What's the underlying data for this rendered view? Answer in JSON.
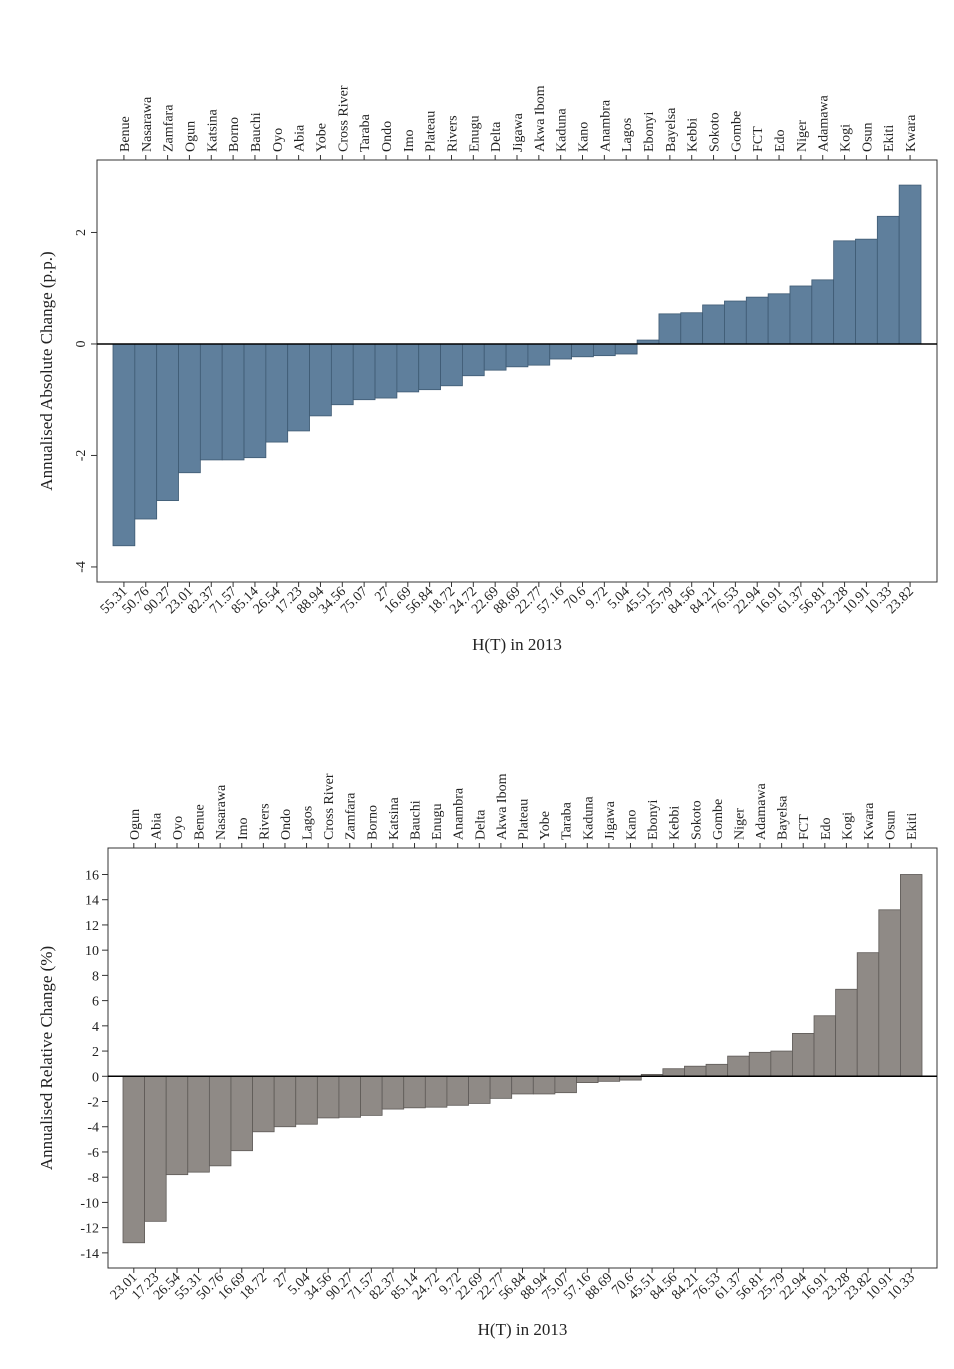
{
  "chart_data": [
    {
      "type": "bar",
      "y_label": "Annualised Absolute Change (p.p.)",
      "x_label": "H(T) in 2013",
      "color": "#5f7f9c",
      "edge_color": "#3e5a73",
      "categories": [
        "Benue",
        "Nasarawa",
        "Zamfara",
        "Ogun",
        "Katsina",
        "Borno",
        "Bauchi",
        "Oyo",
        "Abia",
        "Yobe",
        "Cross River",
        "Taraba",
        "Ondo",
        "Imo",
        "Plateau",
        "Rivers",
        "Enugu",
        "Delta",
        "Jigawa",
        "Akwa Ibom",
        "Kaduna",
        "Kano",
        "Anambra",
        "Lagos",
        "Ebonyi",
        "Bayelsa",
        "Kebbi",
        "Sokoto",
        "Gombe",
        "FCT",
        "Edo",
        "Niger",
        "Adamawa",
        "Kogi",
        "Osun",
        "Ekiti",
        "Kwara"
      ],
      "h_values": [
        55.31,
        50.76,
        90.27,
        23.01,
        82.37,
        71.57,
        85.14,
        26.54,
        17.23,
        88.94,
        34.56,
        75.07,
        27,
        16.69,
        56.84,
        18.72,
        24.72,
        22.69,
        88.69,
        22.77,
        57.16,
        70.6,
        9.72,
        5.04,
        45.51,
        25.79,
        84.56,
        84.21,
        76.53,
        22.94,
        16.91,
        61.37,
        56.81,
        23.28,
        10.91,
        10.33,
        23.82
      ],
      "values": [
        -3.62,
        -3.14,
        -2.81,
        -2.31,
        -2.08,
        -2.08,
        -2.04,
        -1.76,
        -1.56,
        -1.29,
        -1.09,
        -1.0,
        -0.97,
        -0.86,
        -0.82,
        -0.75,
        -0.57,
        -0.47,
        -0.41,
        -0.38,
        -0.27,
        -0.23,
        -0.21,
        -0.18,
        0.07,
        0.54,
        0.56,
        0.7,
        0.77,
        0.84,
        0.9,
        1.04,
        1.15,
        1.85,
        1.88,
        2.29,
        2.85
      ],
      "ylim": [
        -4.27,
        3.3
      ],
      "yticks": [
        -4,
        -2,
        0,
        2
      ]
    },
    {
      "type": "bar",
      "y_label": "Annualised Relative Change (%)",
      "x_label": "H(T) in 2013",
      "color": "#8f8a86",
      "edge_color": "#5e5a57",
      "categories": [
        "Ogun",
        "Abia",
        "Oyo",
        "Benue",
        "Nasarawa",
        "Imo",
        "Rivers",
        "Ondo",
        "Lagos",
        "Cross River",
        "Zamfara",
        "Borno",
        "Katsina",
        "Bauchi",
        "Enugu",
        "Anambra",
        "Delta",
        "Akwa Ibom",
        "Plateau",
        "Yobe",
        "Taraba",
        "Kaduna",
        "Jigawa",
        "Kano",
        "Ebonyi",
        "Kebbi",
        "Sokoto",
        "Gombe",
        "Niger",
        "Adamawa",
        "Bayelsa",
        "FCT",
        "Edo",
        "Kogi",
        "Kwara",
        "Osun",
        "Ekiti"
      ],
      "h_values": [
        23.01,
        17.23,
        26.54,
        55.31,
        50.76,
        16.69,
        18.72,
        27,
        5.04,
        34.56,
        90.27,
        71.57,
        82.37,
        85.14,
        24.72,
        9.72,
        22.69,
        22.77,
        56.84,
        88.94,
        75.07,
        57.16,
        88.69,
        70.6,
        45.51,
        84.56,
        84.21,
        76.53,
        61.37,
        56.81,
        25.79,
        22.94,
        16.91,
        23.28,
        23.82,
        10.91,
        10.33
      ],
      "values": [
        -13.2,
        -11.5,
        -7.8,
        -7.6,
        -7.1,
        -5.9,
        -4.4,
        -4.0,
        -3.8,
        -3.3,
        -3.25,
        -3.1,
        -2.6,
        -2.5,
        -2.45,
        -2.3,
        -2.15,
        -1.75,
        -1.4,
        -1.4,
        -1.3,
        -0.5,
        -0.4,
        -0.3,
        0.15,
        0.6,
        0.8,
        0.95,
        1.6,
        1.9,
        2.0,
        3.4,
        4.8,
        6.9,
        9.8,
        13.2,
        16.0
      ],
      "ylim": [
        -15.2,
        18.1
      ],
      "yticks": [
        -14,
        -12,
        -10,
        -8,
        -6,
        -4,
        -2,
        0,
        2,
        4,
        6,
        8,
        10,
        12,
        14,
        16
      ]
    }
  ]
}
